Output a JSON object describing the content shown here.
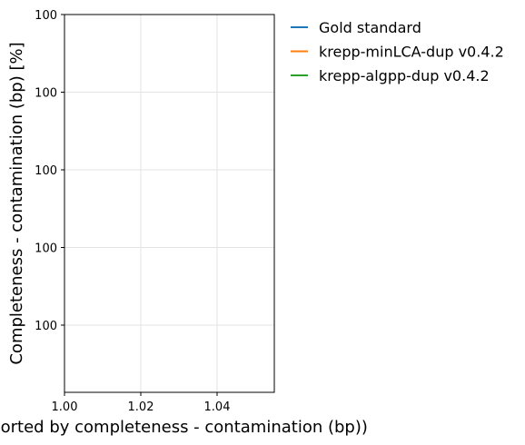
{
  "chart_data": {
    "type": "line",
    "title": "",
    "xlabel": "n (sorted by completeness - contamination (bp))",
    "ylabel": "Completeness - contamination (bp) [%]",
    "xlim": [
      1.0,
      1.055
    ],
    "x_ticks": [
      1.0,
      1.02,
      1.04
    ],
    "x_tick_labels": [
      "1.00",
      "1.02",
      "1.04"
    ],
    "y_tick_labels": [
      "100",
      "100",
      "100",
      "100",
      "100"
    ],
    "grid": true,
    "legend_position": "outside-right",
    "series": [
      {
        "name": "Gold standard",
        "color": "#1f77b4",
        "x": [],
        "y": []
      },
      {
        "name": "krepp-minLCA-dup v0.4.2",
        "color": "#ff7f0e",
        "x": [],
        "y": []
      },
      {
        "name": "krepp-algpp-dup v0.4.2",
        "color": "#2ca02c",
        "x": [],
        "y": []
      }
    ]
  }
}
